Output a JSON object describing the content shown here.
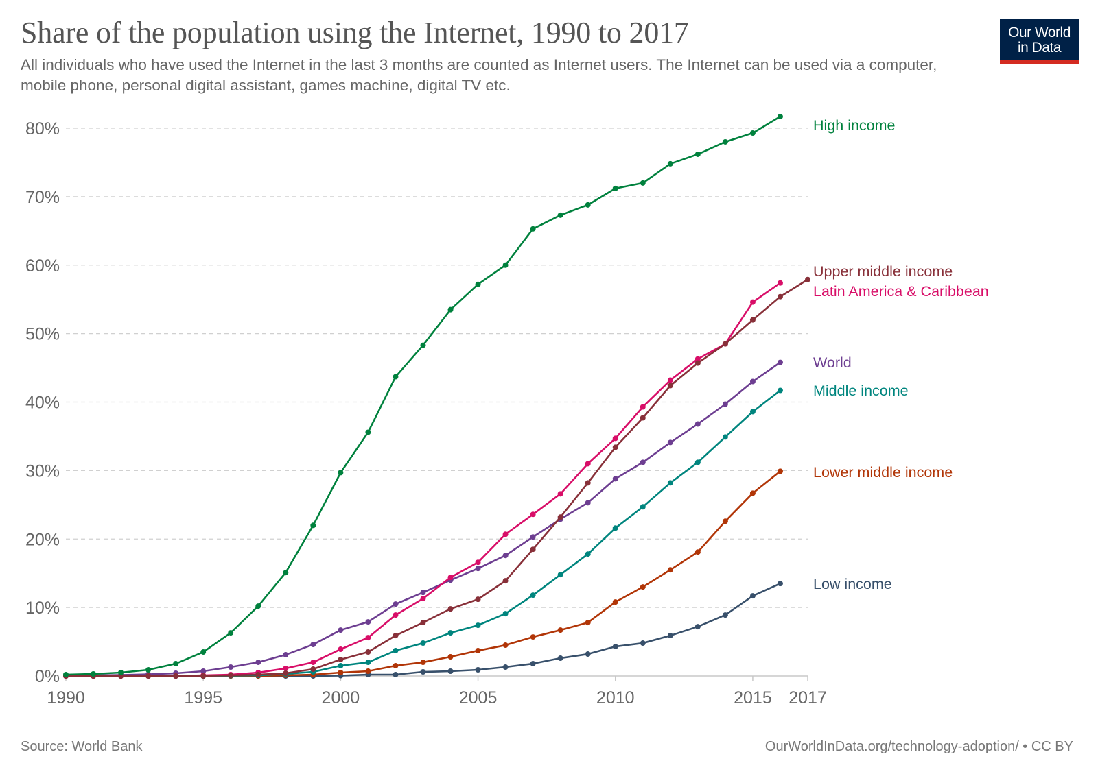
{
  "header": {
    "title": "Share of the population using the Internet, 1990 to 2017",
    "subtitle": "All individuals who have used the Internet in the last 3 months are counted as Internet users. The Internet can be used via a computer, mobile phone, personal digital assistant, games machine, digital TV etc.",
    "logo_line1": "Our World",
    "logo_line2": "in Data"
  },
  "footer": {
    "source": "Source: World Bank",
    "credit": "OurWorldInData.org/technology-adoption/ • CC BY"
  },
  "colors": {
    "logo_bg": "#002147",
    "logo_accent": "#d42b21"
  },
  "chart_data": {
    "type": "line",
    "title": "Share of the population using the Internet, 1990 to 2017",
    "xlabel": "",
    "ylabel": "",
    "xlim": [
      1990,
      2017
    ],
    "ylim": [
      0,
      80
    ],
    "x_ticks": [
      1990,
      1995,
      2000,
      2005,
      2010,
      2015,
      2017
    ],
    "x_tick_labels": [
      "1990",
      "1995",
      "2000",
      "2005",
      "2010",
      "2015",
      "2017"
    ],
    "y_ticks": [
      0,
      10,
      20,
      30,
      40,
      50,
      60,
      70,
      80
    ],
    "y_tick_labels": [
      "0%",
      "10%",
      "20%",
      "30%",
      "40%",
      "50%",
      "60%",
      "70%",
      "80%"
    ],
    "grid": "horizontal-dashed",
    "legend": "inline-right",
    "x": [
      1990,
      1991,
      1992,
      1993,
      1994,
      1995,
      1996,
      1997,
      1998,
      1999,
      2000,
      2001,
      2002,
      2003,
      2004,
      2005,
      2006,
      2007,
      2008,
      2009,
      2010,
      2011,
      2012,
      2013,
      2014,
      2015,
      2016
    ],
    "series": [
      {
        "name": "High income",
        "color": "#00813d",
        "values": [
          0.2,
          0.3,
          0.5,
          0.9,
          1.8,
          3.5,
          6.3,
          10.2,
          15.1,
          22.0,
          29.7,
          35.6,
          43.7,
          48.3,
          53.5,
          57.2,
          60.0,
          65.3,
          67.3,
          68.8,
          71.2,
          72.0,
          74.8,
          76.2,
          78.0,
          79.3,
          81.7
        ]
      },
      {
        "name": "Upper middle income",
        "color": "#883039",
        "x": [
          1990,
          1991,
          1992,
          1993,
          1994,
          1995,
          1996,
          1997,
          1998,
          1999,
          2000,
          2001,
          2002,
          2003,
          2004,
          2005,
          2006,
          2007,
          2008,
          2009,
          2010,
          2011,
          2012,
          2013,
          2014,
          2015,
          2016,
          2017
        ],
        "values": [
          0.0,
          0.0,
          0.0,
          0.0,
          0.0,
          0.0,
          0.1,
          0.2,
          0.4,
          1.0,
          2.4,
          3.5,
          5.9,
          7.8,
          9.8,
          11.2,
          13.9,
          18.5,
          23.2,
          28.2,
          33.4,
          37.7,
          42.4,
          45.7,
          48.5,
          52.0,
          55.4,
          57.9
        ]
      },
      {
        "name": "Latin America & Caribbean",
        "color": "#d80e68",
        "values": [
          0.0,
          0.0,
          0.0,
          0.0,
          0.0,
          0.1,
          0.2,
          0.5,
          1.1,
          2.0,
          3.9,
          5.6,
          8.9,
          11.3,
          14.4,
          16.6,
          20.7,
          23.6,
          26.6,
          31.0,
          34.7,
          39.3,
          43.2,
          46.3,
          48.5,
          54.6,
          57.4
        ]
      },
      {
        "name": "World",
        "color": "#6d3e91",
        "values": [
          0.05,
          0.1,
          0.15,
          0.25,
          0.4,
          0.7,
          1.3,
          2.0,
          3.1,
          4.6,
          6.7,
          7.9,
          10.5,
          12.2,
          14.0,
          15.7,
          17.6,
          20.3,
          22.9,
          25.3,
          28.8,
          31.2,
          34.1,
          36.8,
          39.7,
          43.0,
          45.8
        ]
      },
      {
        "name": "Middle income",
        "color": "#00857e",
        "values": [
          0.0,
          0.0,
          0.0,
          0.0,
          0.0,
          0.0,
          0.05,
          0.1,
          0.3,
          0.6,
          1.5,
          2.0,
          3.7,
          4.8,
          6.3,
          7.4,
          9.1,
          11.8,
          14.8,
          17.8,
          21.6,
          24.7,
          28.2,
          31.2,
          34.9,
          38.6,
          41.7
        ]
      },
      {
        "name": "Lower middle income",
        "color": "#b13507",
        "values": [
          0.0,
          0.0,
          0.0,
          0.0,
          0.0,
          0.0,
          0.0,
          0.0,
          0.1,
          0.2,
          0.5,
          0.7,
          1.5,
          2.0,
          2.8,
          3.7,
          4.5,
          5.7,
          6.7,
          7.8,
          10.8,
          13.0,
          15.5,
          18.1,
          22.6,
          26.7,
          29.9
        ]
      },
      {
        "name": "Low income",
        "color": "#38506b",
        "values": [
          0.0,
          0.0,
          0.0,
          0.0,
          0.0,
          0.0,
          0.0,
          0.0,
          0.0,
          0.0,
          0.05,
          0.2,
          0.2,
          0.6,
          0.7,
          0.9,
          1.3,
          1.8,
          2.6,
          3.2,
          4.3,
          4.8,
          5.9,
          7.2,
          8.9,
          11.7,
          13.5
        ]
      }
    ]
  }
}
